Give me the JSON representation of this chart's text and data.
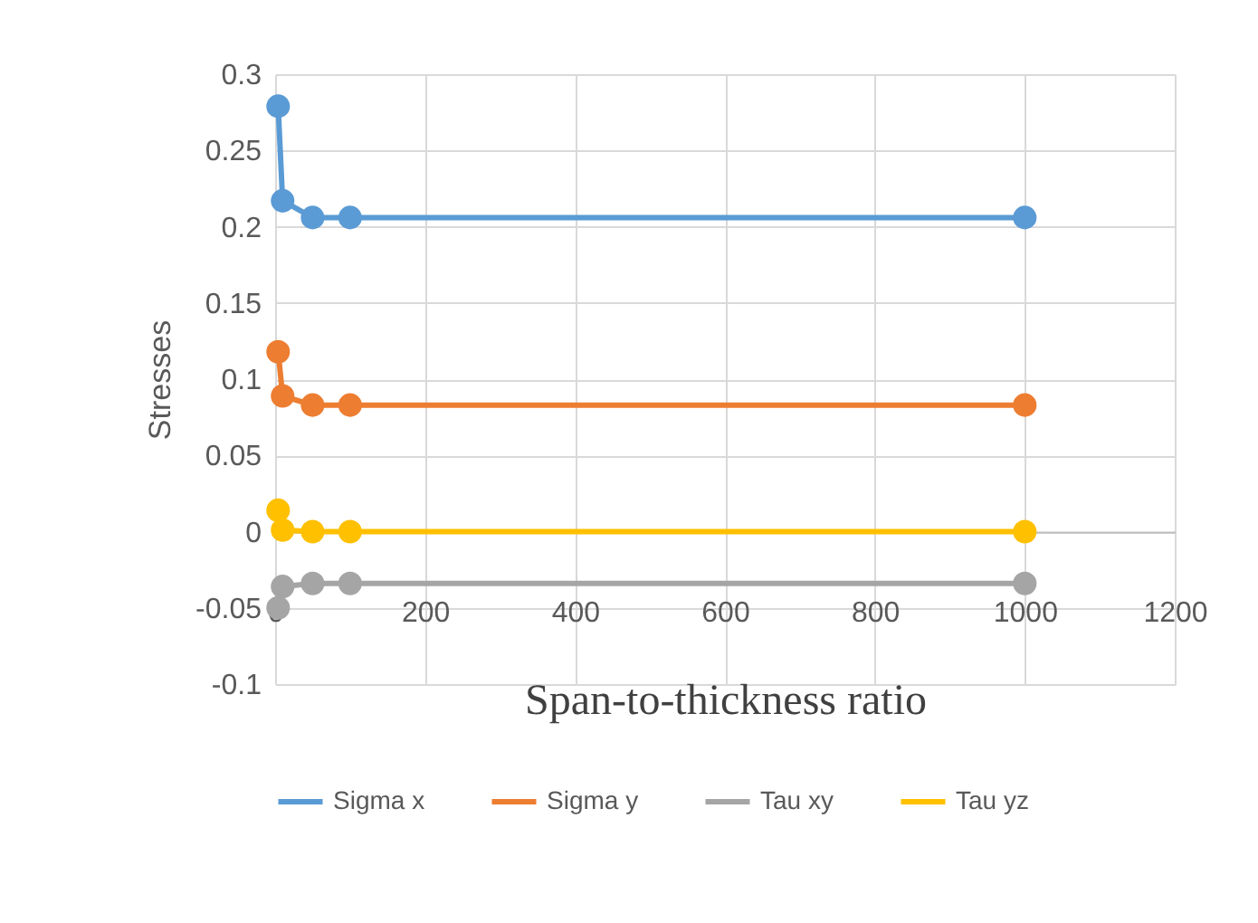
{
  "chart_data": {
    "type": "line",
    "xlabel": "Span-to-thickness ratio",
    "ylabel": "Stresses",
    "x": [
      4,
      10,
      50,
      100,
      1000
    ],
    "series": [
      {
        "name": "Sigma x",
        "color": "#5b9bd5",
        "values": [
          0.279,
          0.217,
          0.206,
          0.206,
          0.206
        ]
      },
      {
        "name": "Sigma y",
        "color": "#ed7d31",
        "values": [
          0.118,
          0.089,
          0.083,
          0.083,
          0.083
        ]
      },
      {
        "name": "Tau xy",
        "color": "#a5a5a5",
        "values": [
          -0.05,
          -0.036,
          -0.034,
          -0.034,
          -0.034
        ]
      },
      {
        "name": "Tau yz",
        "color": "#ffc000",
        "values": [
          0.014,
          0.001,
          0.0,
          0.0,
          0.0
        ]
      }
    ],
    "xlim": [
      0,
      1200
    ],
    "xticks": [
      0,
      200,
      400,
      600,
      800,
      1000,
      1200
    ],
    "ylim": [
      -0.1,
      0.3
    ],
    "yticks": [
      -0.1,
      -0.05,
      0,
      0.05,
      0.1,
      0.15,
      0.2,
      0.25,
      0.3
    ],
    "grid": true,
    "legend": "bottom",
    "marker": "circle",
    "line_style": "solid"
  }
}
